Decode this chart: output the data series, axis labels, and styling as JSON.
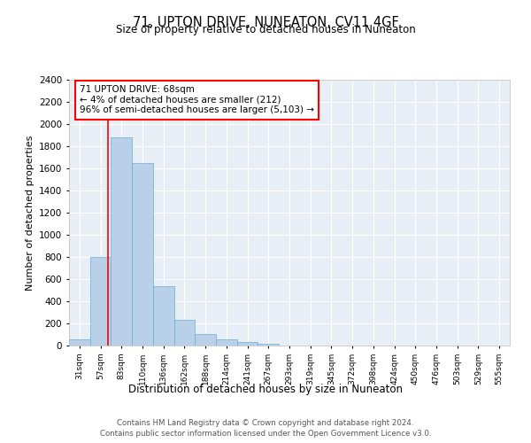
{
  "title": "71, UPTON DRIVE, NUNEATON, CV11 4GF",
  "subtitle": "Size of property relative to detached houses in Nuneaton",
  "xlabel": "Distribution of detached houses by size in Nuneaton",
  "ylabel": "Number of detached properties",
  "bar_color": "#b8d0e8",
  "bar_edge_color": "#6aafd6",
  "background_color": "#e8eef5",
  "grid_color": "#ffffff",
  "categories": [
    "31sqm",
    "57sqm",
    "83sqm",
    "110sqm",
    "136sqm",
    "162sqm",
    "188sqm",
    "214sqm",
    "241sqm",
    "267sqm",
    "293sqm",
    "319sqm",
    "345sqm",
    "372sqm",
    "398sqm",
    "424sqm",
    "450sqm",
    "476sqm",
    "503sqm",
    "529sqm",
    "555sqm"
  ],
  "values": [
    55,
    800,
    1880,
    1650,
    535,
    235,
    105,
    55,
    30,
    20,
    0,
    0,
    0,
    0,
    0,
    0,
    0,
    0,
    0,
    0,
    0
  ],
  "ylim": [
    0,
    2400
  ],
  "yticks": [
    0,
    200,
    400,
    600,
    800,
    1000,
    1200,
    1400,
    1600,
    1800,
    2000,
    2200,
    2400
  ],
  "property_line_x": 1.37,
  "annotation_title": "71 UPTON DRIVE: 68sqm",
  "annotation_line1": "← 4% of detached houses are smaller (212)",
  "annotation_line2": "96% of semi-detached houses are larger (5,103) →",
  "footer_line1": "Contains HM Land Registry data © Crown copyright and database right 2024.",
  "footer_line2": "Contains public sector information licensed under the Open Government Licence v3.0."
}
